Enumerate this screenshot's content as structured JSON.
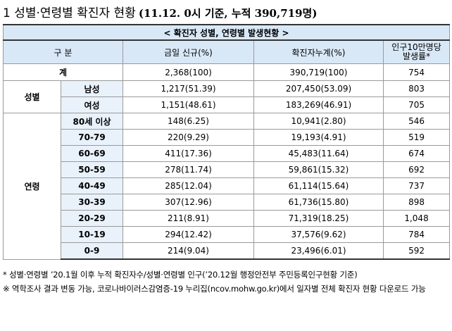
{
  "title": {
    "main": "1 성별·연령별 확진자 현황",
    "sub": "(11.12. 0시 기준, 누적 390,719명)"
  },
  "table": {
    "caption": "< 확진자 성별, 연령별 발생현황 >",
    "headers": {
      "category": "구 분",
      "new": "금일 신규(%)",
      "cumulative": "확진자누계(%)",
      "rate_line1": "인구10만명당",
      "rate_line2": "발생률*"
    },
    "total": {
      "label": "계",
      "new": "2,368(100)",
      "cumulative": "390,719(100)",
      "rate": "754"
    },
    "sex": {
      "label": "성별",
      "rows": [
        {
          "label": "남성",
          "new": "1,217(51.39)",
          "cumulative": "207,450(53.09)",
          "rate": "803"
        },
        {
          "label": "여성",
          "new": "1,151(48.61)",
          "cumulative": "183,269(46.91)",
          "rate": "705"
        }
      ]
    },
    "age": {
      "label": "연령",
      "rows": [
        {
          "label": "80세 이상",
          "new": "148(6.25)",
          "cumulative": "10,941(2.80)",
          "rate": "546"
        },
        {
          "label": "70-79",
          "new": "220(9.29)",
          "cumulative": "19,193(4.91)",
          "rate": "519"
        },
        {
          "label": "60-69",
          "new": "411(17.36)",
          "cumulative": "45,483(11.64)",
          "rate": "674"
        },
        {
          "label": "50-59",
          "new": "278(11.74)",
          "cumulative": "59,861(15.32)",
          "rate": "692"
        },
        {
          "label": "40-49",
          "new": "285(12.04)",
          "cumulative": "61,114(15.64)",
          "rate": "737"
        },
        {
          "label": "30-39",
          "new": "307(12.96)",
          "cumulative": "61,736(15.80)",
          "rate": "898"
        },
        {
          "label": "20-29",
          "new": "211(8.91)",
          "cumulative": "71,319(18.25)",
          "rate": "1,048"
        },
        {
          "label": "10-19",
          "new": "294(12.42)",
          "cumulative": "37,576(9.62)",
          "rate": "784"
        },
        {
          "label": "0-9",
          "new": "214(9.04)",
          "cumulative": "23,496(6.01)",
          "rate": "592"
        }
      ]
    }
  },
  "notes": [
    "* 성별·연령별 ’20.1월 이후 누적 확진자수/성별·연령별 인구(’20.12월 행정안전부 주민등록인구현황 기준)",
    "※ 역학조사 결과 변동 가능, 코로나바이러스감염증-19 누리집(ncov.mohw.go.kr)에서 일자별 전체 확진자 현황 다운로드 가능"
  ]
}
